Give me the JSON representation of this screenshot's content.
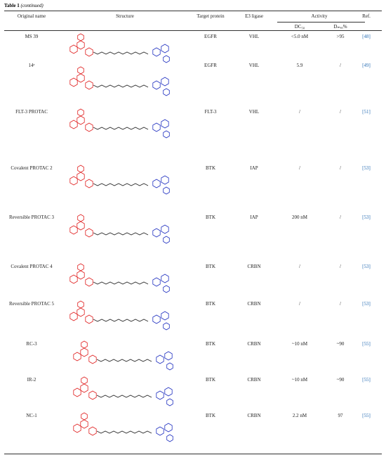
{
  "header": {
    "title": "Table 1",
    "continued": "(continued)"
  },
  "table": {
    "columns": [
      "Original name",
      "Structure",
      "Target protein",
      "E3 ligase",
      "Activity",
      "Ref."
    ],
    "subcolumns": [
      "DC₅₀",
      "Dₘₐₓ%"
    ],
    "rows": [
      [
        "MS 39",
        "EGFR",
        "VHL",
        "<5.0 nM",
        ">95",
        "[48]"
      ],
      [
        "14ᵃ",
        "EGFR",
        "VHL",
        "5.9",
        "/",
        "[49]"
      ],
      [
        "FLT-3 PROTAC",
        "FLT-3",
        "VHL",
        "/",
        "/",
        "[51]"
      ],
      [
        "Covalent PROTAC 2",
        "BTK",
        "IAP",
        "/",
        "/",
        "[53]"
      ],
      [
        "Reversible PROTAC 3",
        "BTK",
        "IAP",
        "200 nM",
        "/",
        "[53]"
      ],
      [
        "Covalent PROTAC 4",
        "BTK",
        "CRBN",
        "/",
        "/",
        "[53]"
      ],
      [
        "Reversible PROTAC 5",
        "BTK",
        "CRBN",
        "/",
        "/",
        "[53]"
      ],
      [
        "RC-3",
        "BTK",
        "CRBN",
        "~10 nM",
        "~90",
        "[55]"
      ],
      [
        "IR-2",
        "BTK",
        "CRBN",
        "~10 nM",
        "~90",
        "[55]"
      ],
      [
        "NC-1",
        "BTK",
        "CRBN",
        "2.2 nM",
        "97",
        "[55]"
      ]
    ]
  }
}
